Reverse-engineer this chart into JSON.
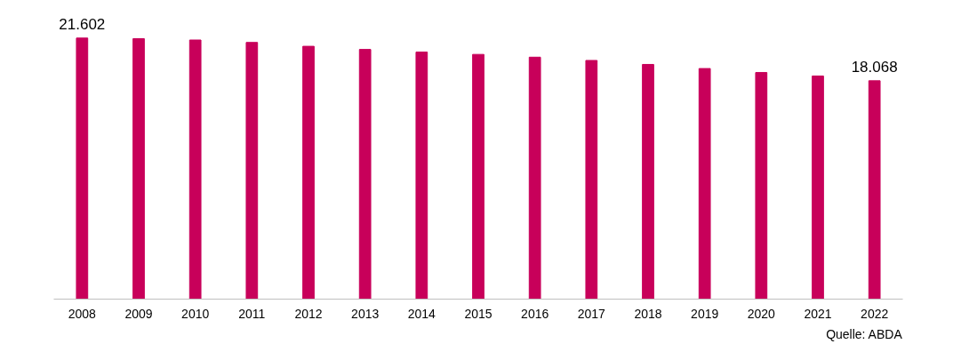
{
  "chart_data": {
    "type": "bar",
    "categories": [
      "2008",
      "2009",
      "2010",
      "2011",
      "2012",
      "2013",
      "2014",
      "2015",
      "2016",
      "2017",
      "2018",
      "2019",
      "2020",
      "2021",
      "2022"
    ],
    "values": [
      21602,
      21550,
      21440,
      21240,
      20920,
      20660,
      20440,
      20250,
      20020,
      19750,
      19420,
      19080,
      18750,
      18460,
      18068
    ],
    "value_labels": [
      "21.602",
      null,
      null,
      null,
      null,
      null,
      null,
      null,
      null,
      null,
      null,
      null,
      null,
      null,
      "18.068"
    ],
    "color": "#c8005a",
    "tick_labels": "x",
    "grid": false,
    "annotations": [
      "Quelle: ABDA"
    ]
  }
}
